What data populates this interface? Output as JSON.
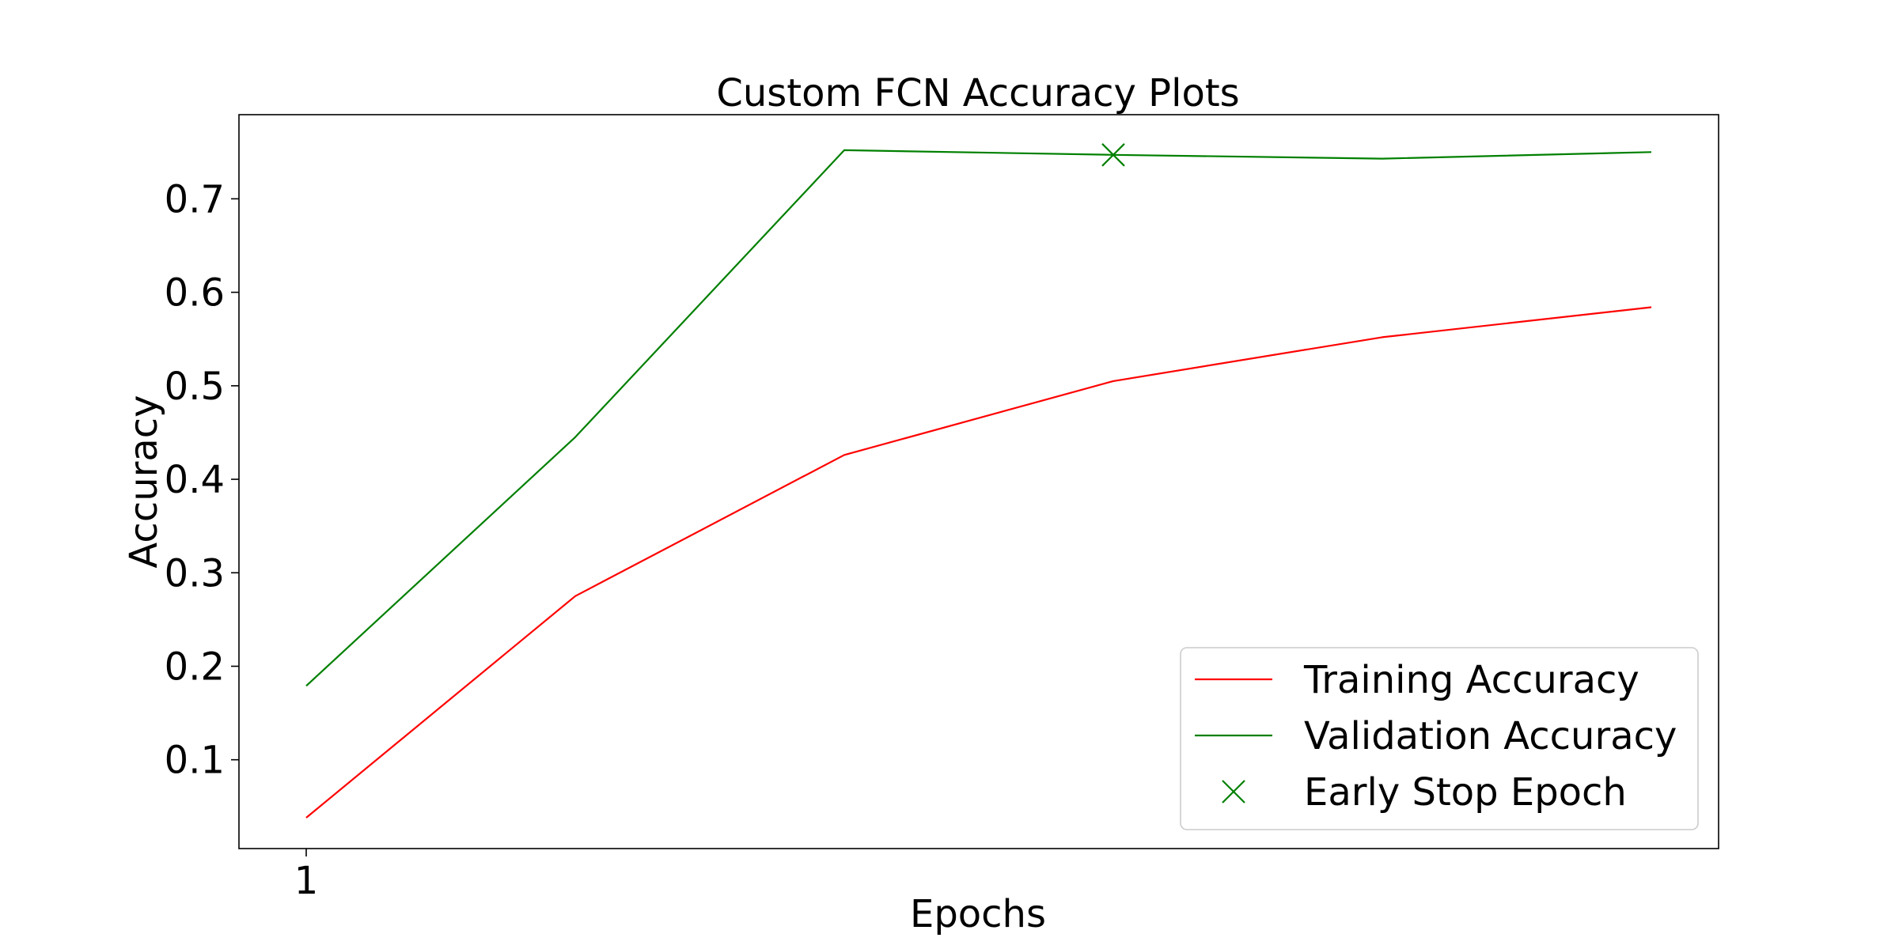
{
  "chart_data": {
    "type": "line",
    "title": "Custom FCN Accuracy Plots",
    "xlabel": "Epochs",
    "ylabel": "Accuracy",
    "x": [
      1,
      2,
      3,
      4,
      5,
      6
    ],
    "x_tick_labels": [
      {
        "value": 1,
        "label": "1"
      }
    ],
    "y_ticks": [
      0.1,
      0.2,
      0.3,
      0.4,
      0.5,
      0.6,
      0.7
    ],
    "y_tick_labels": [
      "0.1",
      "0.2",
      "0.3",
      "0.4",
      "0.5",
      "0.6",
      "0.7"
    ],
    "xlim": [
      0.75,
      6.25
    ],
    "ylim": [
      0.005,
      0.79
    ],
    "grid": false,
    "legend_position": "lower-right",
    "series": [
      {
        "name": "Training Accuracy",
        "color": "#ff0000",
        "values": [
          0.038,
          0.275,
          0.426,
          0.505,
          0.552,
          0.584
        ]
      },
      {
        "name": "Validation Accuracy",
        "color": "#008000",
        "values": [
          0.179,
          0.445,
          0.752,
          0.747,
          0.743,
          0.75
        ]
      }
    ],
    "markers": [
      {
        "name": "Early Stop Epoch",
        "color": "#008000",
        "marker": "x",
        "x": 4,
        "y": 0.747
      }
    ]
  }
}
